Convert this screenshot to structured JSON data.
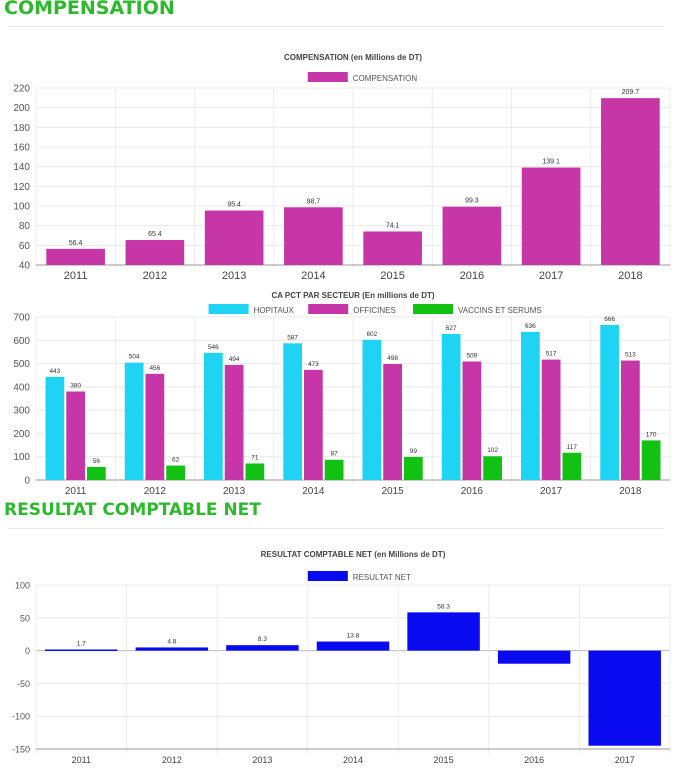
{
  "sections": {
    "compensation_heading": "COMPENSATION",
    "resultat_heading": "RESULTAT COMPTABLE NET"
  },
  "chart_data": [
    {
      "id": "compensation",
      "type": "bar",
      "title": "COMPENSATION (en Millions de DT)",
      "categories": [
        "2011",
        "2012",
        "2013",
        "2014",
        "2015",
        "2016",
        "2017",
        "2018"
      ],
      "series": [
        {
          "name": "COMPENSATION",
          "color": "#c636a6",
          "values": [
            56.4,
            65.4,
            95.4,
            98.7,
            74.1,
            99.3,
            139.1,
            209.7
          ],
          "labels": [
            "56.4",
            "65.4",
            "95.4",
            "98.7",
            "74.1",
            "99.3",
            "139.1",
            "209.7"
          ]
        }
      ],
      "ylim": [
        40,
        220
      ],
      "yticks": [
        40,
        60,
        80,
        100,
        120,
        140,
        160,
        180,
        200,
        220
      ],
      "grid": true,
      "legend": "top-center"
    },
    {
      "id": "ca_pct",
      "type": "bar",
      "title": "CA PCT PAR SECTEUR (En millions de DT)",
      "categories": [
        "2011",
        "2012",
        "2013",
        "2014",
        "2015",
        "2016",
        "2017",
        "2018"
      ],
      "series": [
        {
          "name": "HOPITAUX",
          "color": "#1fd4f2",
          "values": [
            443,
            504,
            546,
            587,
            602,
            627,
            636,
            666
          ],
          "labels": [
            "443",
            "504",
            "546",
            "587",
            "602",
            "627",
            "636",
            "666"
          ]
        },
        {
          "name": "OFFICINES",
          "color": "#c636a6",
          "values": [
            380,
            456,
            494,
            473,
            498,
            509,
            517,
            513
          ],
          "labels": [
            "380",
            "456",
            "494",
            "473",
            "498",
            "509",
            "517",
            "513"
          ]
        },
        {
          "name": "VACCINS ET SERUMS",
          "color": "#13c113",
          "values": [
            56,
            62,
            71,
            87,
            99,
            102,
            117,
            170
          ],
          "labels": [
            "56",
            "62",
            "71",
            "87",
            "99",
            "102",
            "117",
            "170"
          ]
        }
      ],
      "ylim": [
        0,
        700
      ],
      "yticks": [
        0,
        100,
        200,
        300,
        400,
        500,
        600,
        700
      ],
      "grid": true,
      "legend": "top-center"
    },
    {
      "id": "resultat",
      "type": "bar",
      "title": "RESULTAT COMPTABLE NET (en Millions de DT)",
      "categories": [
        "2011",
        "2012",
        "2013",
        "2014",
        "2015",
        "2016",
        "2017"
      ],
      "series": [
        {
          "name": "RESULTAT NET",
          "color": "#0a0af0",
          "values": [
            1.7,
            4.8,
            8.3,
            13.8,
            58.3,
            -20,
            -145
          ],
          "labels": [
            "1.7",
            "4.8",
            "8.3",
            "13.8",
            "58.3",
            "",
            ""
          ]
        }
      ],
      "ylim": [
        -150,
        100
      ],
      "yticks": [
        -150,
        -100,
        -50,
        0,
        50,
        100
      ],
      "grid": true,
      "legend": "top-center"
    }
  ]
}
